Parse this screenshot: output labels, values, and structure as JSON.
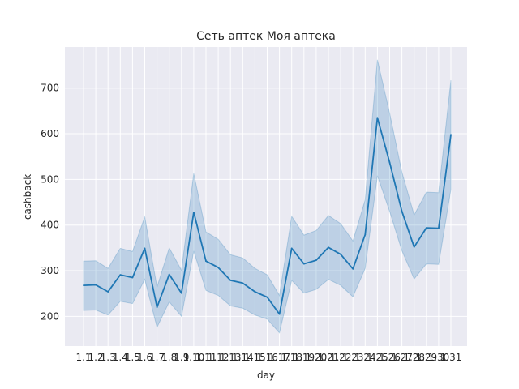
{
  "chart_data": {
    "type": "line",
    "title": "Сеть аптек Моя аптека",
    "xlabel": "day",
    "ylabel": "cashback",
    "categories": [
      "1.1",
      "1.2",
      "1.3",
      "1.4",
      "1.5",
      "1.6",
      "1.7",
      "1.8",
      "1.9",
      "1.10",
      "1.11",
      "1.12",
      "1.13",
      "1.14",
      "1.15",
      "1.16",
      "1.17",
      "1.18",
      "1.19",
      "1.20",
      "1.21",
      "1.22",
      "1.23",
      "1.24",
      "1.25",
      "1.26",
      "1.27",
      "1.28",
      "1.29",
      "1.30",
      "1.31"
    ],
    "series": [
      {
        "values": [
          268,
          269,
          254,
          291,
          285,
          349,
          220,
          292,
          251,
          428,
          321,
          307,
          279,
          273,
          254,
          242,
          205,
          349,
          315,
          323,
          351,
          336,
          304,
          379,
          635,
          537,
          430,
          352,
          394,
          393,
          598
        ],
        "ci_lower": [
          213,
          214,
          203,
          233,
          228,
          281,
          176,
          232,
          200,
          343,
          257,
          246,
          223,
          218,
          203,
          194,
          164,
          279,
          251,
          259,
          281,
          268,
          243,
          305,
          508,
          430,
          344,
          282,
          315,
          314,
          478
        ],
        "ci_upper": [
          321,
          322,
          305,
          349,
          342,
          418,
          264,
          350,
          301,
          513,
          385,
          369,
          335,
          328,
          305,
          291,
          246,
          419,
          378,
          388,
          421,
          403,
          365,
          455,
          762,
          645,
          516,
          422,
          472,
          471,
          717
        ],
        "color": "#1f77b4"
      }
    ],
    "ylim": [
      135,
      790
    ],
    "yticks": [
      200,
      300,
      400,
      500,
      600,
      700
    ],
    "grid": true,
    "background": "#eaeaf2"
  }
}
